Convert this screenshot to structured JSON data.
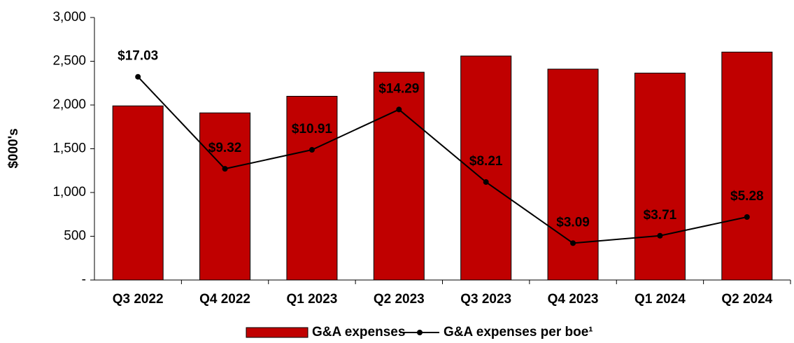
{
  "chart_data": {
    "type": "bar",
    "y_label": "$000's",
    "categories": [
      "Q3 2022",
      "Q4 2022",
      "Q1 2023",
      "Q2 2023",
      "Q3 2023",
      "Q4 2023",
      "Q1 2024",
      "Q2 2024"
    ],
    "series": [
      {
        "name": "G&A expenses",
        "type": "bar",
        "color": "#c00000",
        "values": [
          1990,
          1910,
          2100,
          2375,
          2560,
          2410,
          2365,
          2605
        ]
      },
      {
        "name": "G&A expenses per boe¹",
        "type": "line",
        "color": "#000000",
        "axis": "y2",
        "values": [
          17.03,
          9.32,
          10.91,
          14.29,
          8.21,
          3.09,
          3.71,
          5.28
        ],
        "value_labels": [
          "$17.03",
          "$9.32",
          "$10.91",
          "$14.29",
          "$8.21",
          "$3.09",
          "$3.71",
          "$5.28"
        ]
      }
    ],
    "ylim": [
      0,
      3000
    ],
    "yticks": [
      {
        "value": 0,
        "label": "-"
      },
      500,
      {
        "value": 1000,
        "label": "1,000"
      },
      {
        "value": 1500,
        "label": "1,500"
      },
      {
        "value": 2000,
        "label": "2,000"
      },
      {
        "value": 2500,
        "label": "2,500"
      },
      {
        "value": 3000,
        "label": "3,000"
      }
    ],
    "y2lim": [
      0,
      22
    ],
    "grid": false,
    "legend": "bottom"
  }
}
